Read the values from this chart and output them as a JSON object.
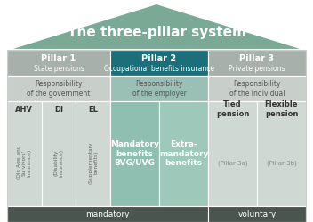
{
  "title": "The three-pillar system",
  "roof_color": "#7aaa96",
  "title_color": "#ffffff",
  "pillar1_bg": "#a8b0ac",
  "pillar2_bg": "#1a6f7a",
  "pillar3_bg": "#a8b0ac",
  "pillar1_title": "Pillar 1",
  "pillar1_sub": "State pensions",
  "pillar2_title": "Pillar 2",
  "pillar2_sub": "Occupational benefits insurance",
  "pillar3_title": "Pillar 3",
  "pillar3_sub": "Private pensions",
  "resp1": "Responsibility\nof the government",
  "resp2": "Responsibility\nof the employer",
  "resp3": "Responsibility\nof the individual",
  "resp1_bg": "#c8ceca",
  "resp2_bg": "#9abfb4",
  "resp3_bg": "#c8ceca",
  "cell_bg_light": "#d0d8d4",
  "cell_bg_green1": "#8fbfb0",
  "cell_bg_green2": "#9dc8ba",
  "bottom_bg": "#4a5550",
  "bottom_text_color": "#ffffff",
  "ahv_label": "AHV",
  "ahv_sub": "(Old Age and\nSurvivors'\nInsurance)",
  "di_label": "DI",
  "di_sub": "(Disability\ninsurance)",
  "el_label": "EL",
  "el_sub": "(Supplementary\nbenefits)",
  "mandatory_ben_label": "Mandatory\nbenefits\nBVG/UVG",
  "extra_ben_label": "Extra-\nmandatory\nbenefits",
  "tied_label": "Tied\npension",
  "tied_sub": "(Pillar 3a)",
  "flexible_label": "Flexible\npension",
  "flexible_sub": "(Pillar 3b)",
  "mandatory_text": "mandatory",
  "voluntary_text": "voluntary",
  "outer_bg": "#f0f0f0",
  "white": "#ffffff"
}
